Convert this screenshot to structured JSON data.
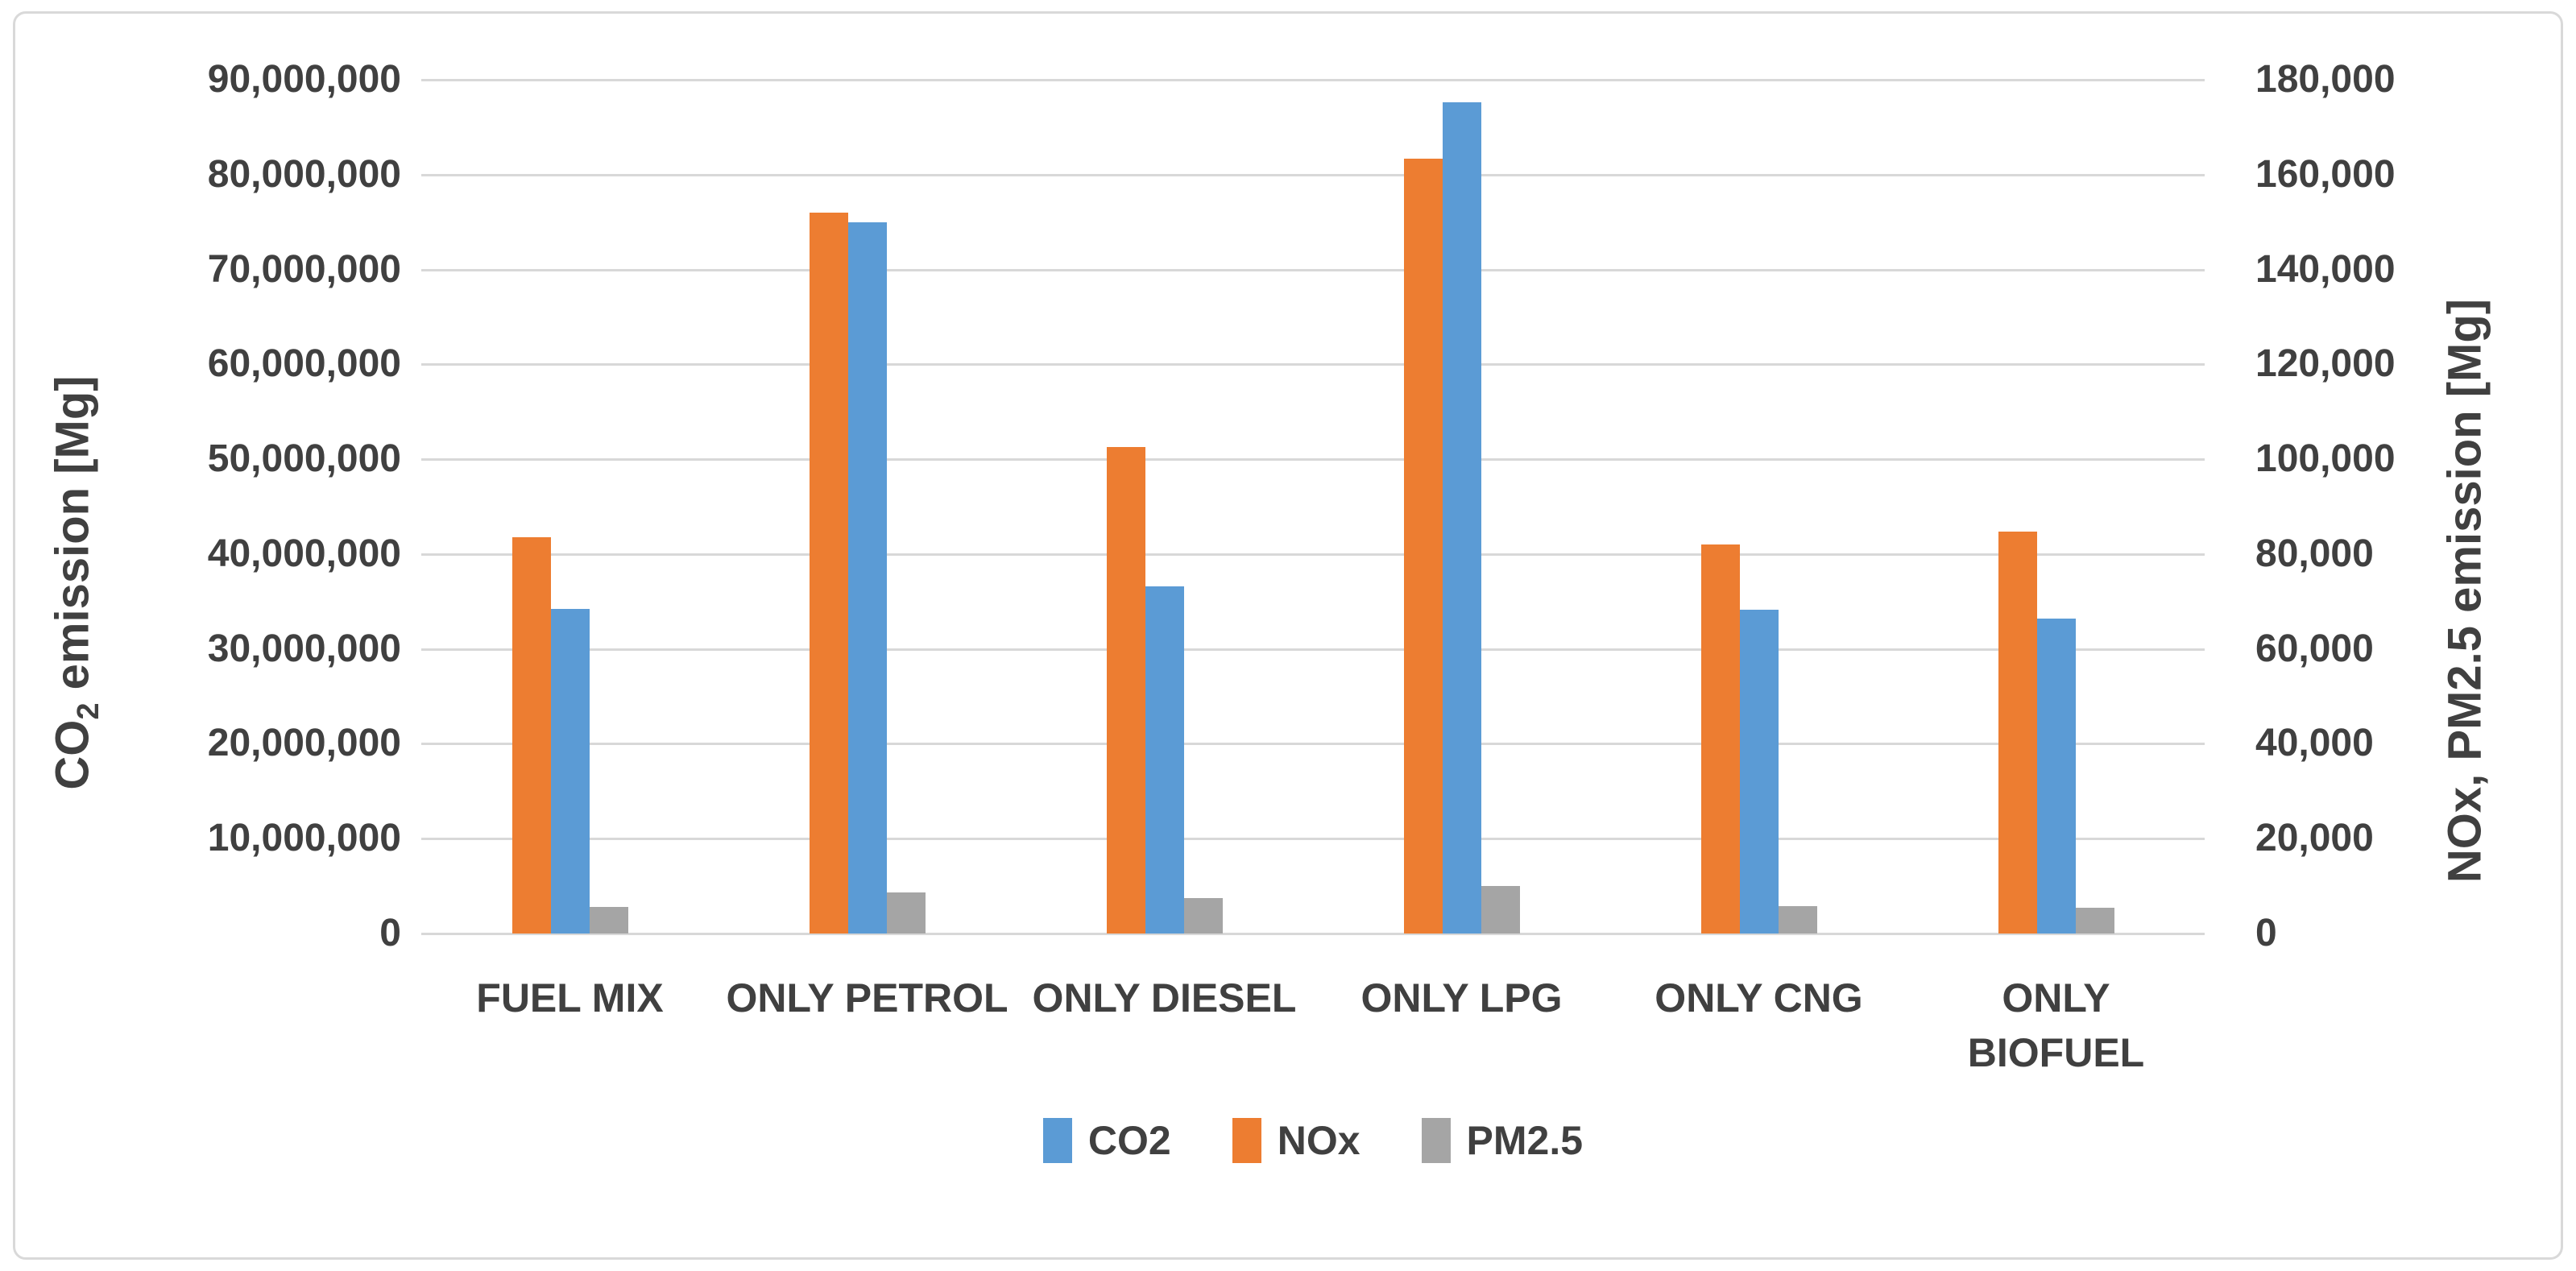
{
  "chart_data": {
    "type": "bar",
    "title": "",
    "categories": [
      "FUEL MIX",
      "ONLY PETROL",
      "ONLY DIESEL",
      "ONLY LPG",
      "ONLY CNG",
      "ONLY BIOFUEL"
    ],
    "category_label_lines": [
      [
        "FUEL MIX"
      ],
      [
        "ONLY PETROL"
      ],
      [
        "ONLY DIESEL"
      ],
      [
        "ONLY LPG"
      ],
      [
        "ONLY CNG"
      ],
      [
        "ONLY",
        "BIOFUEL"
      ]
    ],
    "series": [
      {
        "name": "CO2",
        "axis": "left",
        "color": "#5B9BD5",
        "css": "co2",
        "values": [
          34200000,
          75000000,
          36600000,
          87600000,
          34100000,
          33200000
        ]
      },
      {
        "name": "NOx",
        "axis": "right",
        "color": "#ED7D31",
        "css": "nox",
        "values": [
          83500,
          152000,
          102600,
          163400,
          82000,
          84800
        ]
      },
      {
        "name": "PM2.5",
        "axis": "right",
        "color": "#A5A5A5",
        "css": "pm25",
        "values": [
          5600,
          8600,
          7400,
          10000,
          5800,
          5500
        ]
      }
    ],
    "bar_order_in_group": [
      "NOx",
      "CO2",
      "PM2.5"
    ],
    "legend": [
      "CO2",
      "NOx",
      "PM2.5"
    ],
    "legend_position": "bottom",
    "grid": true,
    "left_axis": {
      "title_prefix": "CO",
      "title_sub": "2",
      "title_suffix": " emission [Mg]",
      "min": 0,
      "max": 90000000,
      "step": 10000000,
      "tick_labels_top_to_bottom": [
        "90,000,000",
        "80,000,000",
        "70,000,000",
        "60,000,000",
        "50,000,000",
        "40,000,000",
        "30,000,000",
        "20,000,000",
        "10,000,000",
        "0"
      ]
    },
    "right_axis": {
      "title": "NOx, PM2.5 emission [Mg]",
      "min": 0,
      "max": 180000,
      "step": 20000,
      "tick_labels_top_to_bottom": [
        "180,000",
        "160,000",
        "140,000",
        "120,000",
        "100,000",
        "80,000",
        "60,000",
        "40,000",
        "20,000",
        "0"
      ]
    }
  }
}
